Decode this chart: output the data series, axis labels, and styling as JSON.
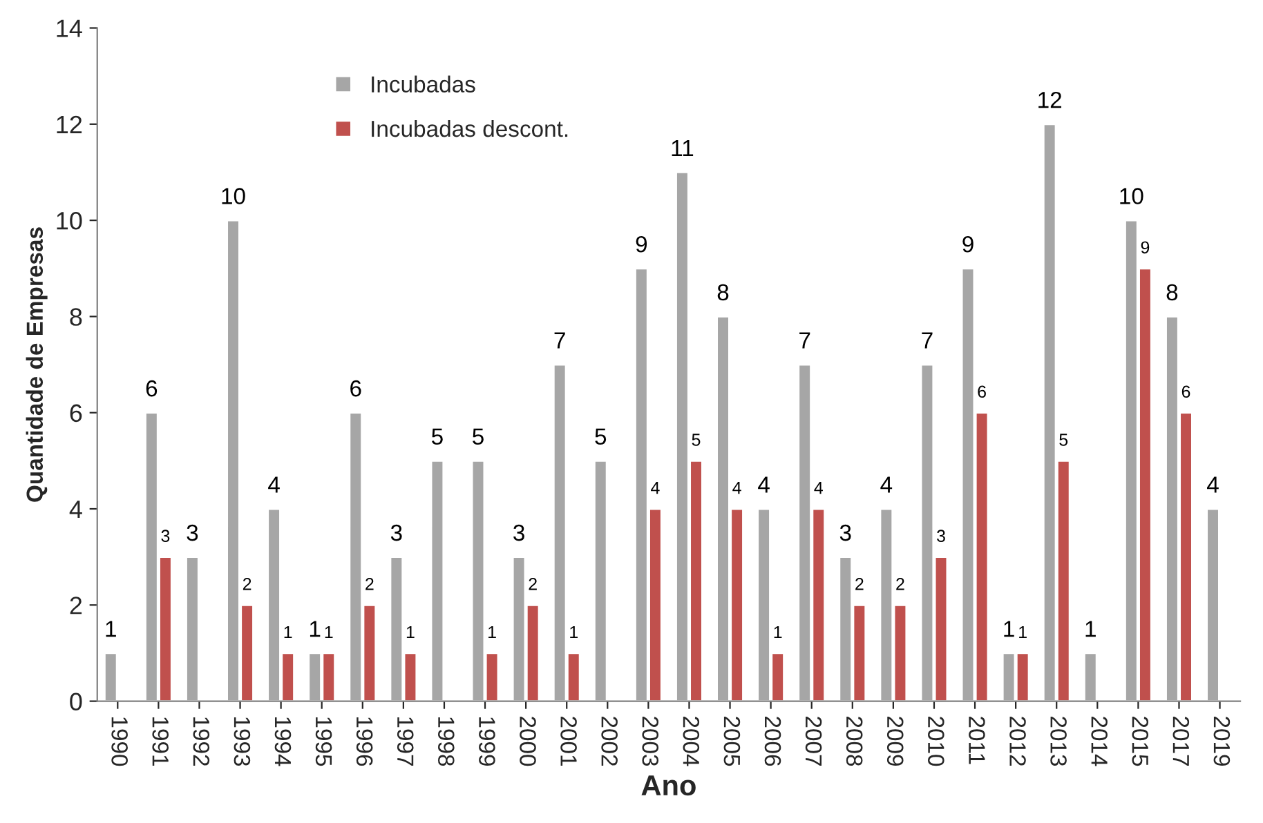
{
  "chart_data": {
    "type": "bar",
    "xlabel": "Ano",
    "ylabel": "Quantidade de Empresas",
    "categories": [
      "1990",
      "1991",
      "1992",
      "1993",
      "1994",
      "1995",
      "1996",
      "1997",
      "1998",
      "1999",
      "2000",
      "2001",
      "2002",
      "2003",
      "2004",
      "2005",
      "2006",
      "2007",
      "2008",
      "2009",
      "2010",
      "2011",
      "2012",
      "2013",
      "2014",
      "2015",
      "2017",
      "2019"
    ],
    "series": [
      {
        "name": "Incubadas",
        "color": "#a6a6a6",
        "values": [
          1,
          6,
          3,
          10,
          4,
          1,
          6,
          3,
          5,
          5,
          3,
          7,
          5,
          9,
          11,
          8,
          4,
          7,
          3,
          4,
          7,
          9,
          1,
          12,
          1,
          10,
          8,
          4
        ]
      },
      {
        "name": "Incubadas descont.",
        "color": "#c0504d",
        "values": [
          null,
          3,
          null,
          2,
          1,
          1,
          2,
          1,
          null,
          1,
          2,
          1,
          null,
          4,
          5,
          4,
          1,
          4,
          2,
          2,
          3,
          6,
          1,
          5,
          null,
          9,
          6,
          null
        ]
      }
    ],
    "ylim": [
      0,
      14
    ],
    "yticks": [
      0,
      2,
      4,
      6,
      8,
      10,
      12,
      14
    ],
    "grid": false,
    "legend": "top left",
    "data_labels": true
  }
}
